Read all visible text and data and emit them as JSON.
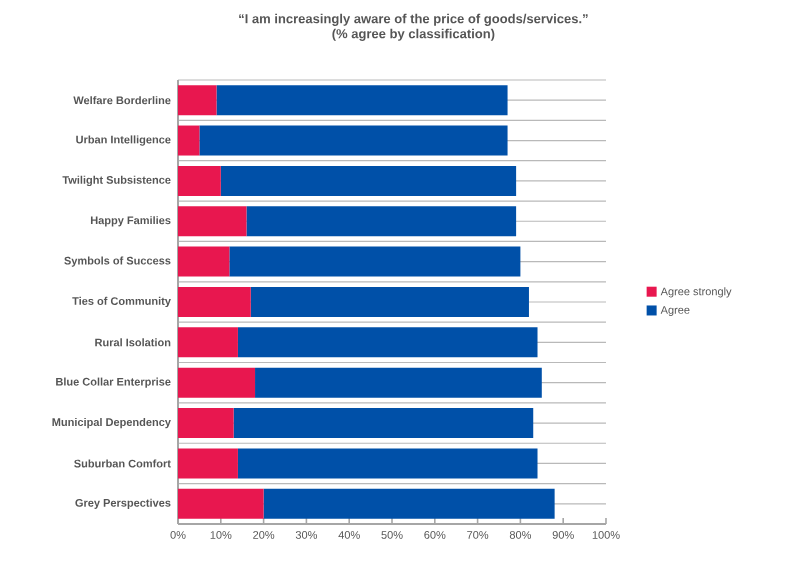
{
  "chart_data": {
    "type": "bar",
    "orientation": "horizontal",
    "stacked": true,
    "title": "“I am increasingly aware of the price of goods/services.”",
    "subtitle": "(% agree by classification)",
    "categories": [
      "Welfare Borderline",
      "Urban Intelligence",
      "Twilight Subsistence",
      "Happy Families",
      "Symbols of Success",
      "Ties of Community",
      "Rural Isolation",
      "Blue Collar Enterprise",
      "Municipal Dependency",
      "Suburban Comfort",
      "Grey Perspectives"
    ],
    "series": [
      {
        "name": "Agree strongly",
        "color": "#e8174f",
        "values": [
          9,
          5,
          10,
          16,
          12,
          17,
          14,
          18,
          13,
          14,
          20
        ]
      },
      {
        "name": "Agree",
        "color": "#0050a8",
        "values": [
          68,
          72,
          69,
          63,
          68,
          65,
          70,
          67,
          70,
          70,
          68
        ]
      }
    ],
    "xlim": [
      0,
      100
    ],
    "xticks": [
      {
        "value": 0,
        "label": "0%"
      },
      {
        "value": 10,
        "label": "10%"
      },
      {
        "value": 20,
        "label": "20%"
      },
      {
        "value": 30,
        "label": "30%"
      },
      {
        "value": 40,
        "label": "40%"
      },
      {
        "value": 50,
        "label": "50%"
      },
      {
        "value": 60,
        "label": "60%"
      },
      {
        "value": 70,
        "label": "70%"
      },
      {
        "value": 80,
        "label": "80%"
      },
      {
        "value": 90,
        "label": "90%"
      },
      {
        "value": 100,
        "label": "100%"
      }
    ],
    "grid": "y",
    "legend": "right"
  }
}
